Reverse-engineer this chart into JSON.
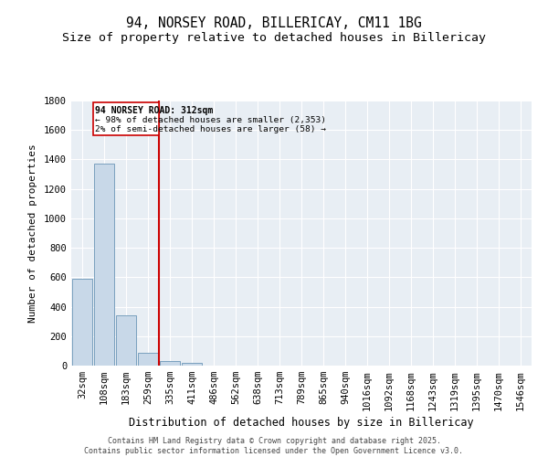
{
  "title1": "94, NORSEY ROAD, BILLERICAY, CM11 1BG",
  "title2": "Size of property relative to detached houses in Billericay",
  "xlabel": "Distribution of detached houses by size in Billericay",
  "ylabel": "Number of detached properties",
  "categories": [
    "32sqm",
    "108sqm",
    "183sqm",
    "259sqm",
    "335sqm",
    "411sqm",
    "486sqm",
    "562sqm",
    "638sqm",
    "713sqm",
    "789sqm",
    "865sqm",
    "940sqm",
    "1016sqm",
    "1092sqm",
    "1168sqm",
    "1243sqm",
    "1319sqm",
    "1395sqm",
    "1470sqm",
    "1546sqm"
  ],
  "values": [
    590,
    1370,
    340,
    90,
    30,
    20,
    0,
    0,
    0,
    0,
    0,
    0,
    0,
    0,
    0,
    0,
    0,
    0,
    0,
    0,
    0
  ],
  "bar_color": "#c8d8e8",
  "bar_edge_color": "#7aa0be",
  "vline_x": 3.5,
  "vline_color": "#cc0000",
  "vline_label": "94 NORSEY ROAD: 312sqm",
  "annotation_line2": "← 98% of detached houses are smaller (2,353)",
  "annotation_line3": "2% of semi-detached houses are larger (58) →",
  "annotation_box_color": "#cc0000",
  "ylim": [
    0,
    1800
  ],
  "yticks": [
    0,
    200,
    400,
    600,
    800,
    1000,
    1200,
    1400,
    1600,
    1800
  ],
  "bg_color": "#e8eef4",
  "footnote": "Contains HM Land Registry data © Crown copyright and database right 2025.\nContains public sector information licensed under the Open Government Licence v3.0.",
  "title1_fontsize": 10.5,
  "title2_fontsize": 9.5,
  "xlabel_fontsize": 8.5,
  "ylabel_fontsize": 8,
  "tick_fontsize": 7.5,
  "annotation_fontsize": 7,
  "footnote_fontsize": 6
}
